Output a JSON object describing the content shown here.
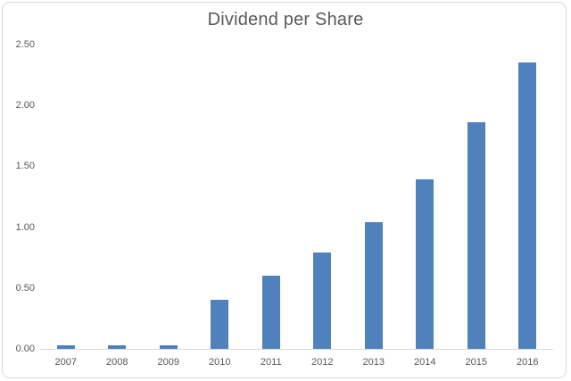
{
  "chart_data": {
    "type": "bar",
    "title": "Dividend per Share",
    "categories": [
      "2007",
      "2008",
      "2009",
      "2010",
      "2011",
      "2012",
      "2013",
      "2014",
      "2015",
      "2016"
    ],
    "values": [
      0.03,
      0.03,
      0.03,
      0.4,
      0.6,
      0.79,
      1.04,
      1.39,
      1.86,
      2.35
    ],
    "xlabel": "",
    "ylabel": "",
    "ylim": [
      0,
      2.5
    ],
    "yticks": [
      0,
      0.5,
      1.0,
      1.5,
      2.0,
      2.5
    ],
    "ytick_labels": [
      "0.00",
      "0.50",
      "1.00",
      "1.50",
      "2.00",
      "2.50"
    ],
    "grid": false,
    "legend": false,
    "bar_color": "#4f81bd",
    "axis_line_color": "#d9d9d9",
    "text_color": "#595959",
    "frame_border_color": "#d9d9d9",
    "background_color": "#ffffff"
  }
}
